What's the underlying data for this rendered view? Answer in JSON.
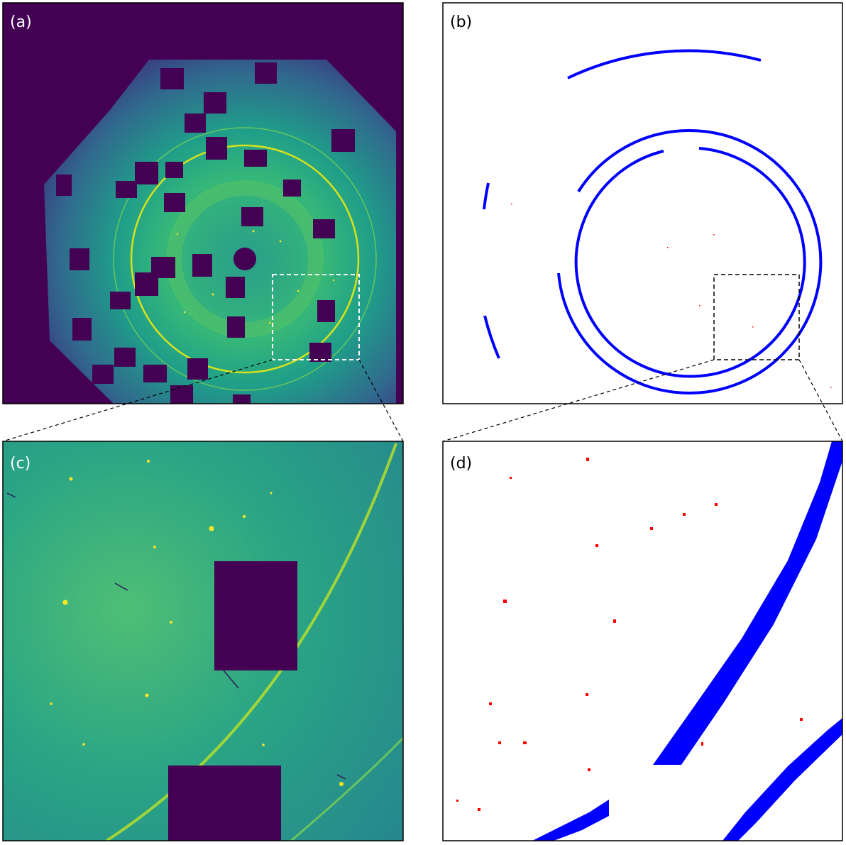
{
  "panels": [
    {
      "id": "a",
      "label": "(a)"
    },
    {
      "id": "b",
      "label": "(b)"
    },
    {
      "id": "c",
      "label": "(c)"
    },
    {
      "id": "d",
      "label": "(d)"
    }
  ],
  "colors": {
    "background": "#440154",
    "ring_mask": "#0000ff",
    "peak_mask": "#ff0000",
    "zoom_box_a": "#ffffff",
    "zoom_box_b": "#000000"
  }
}
